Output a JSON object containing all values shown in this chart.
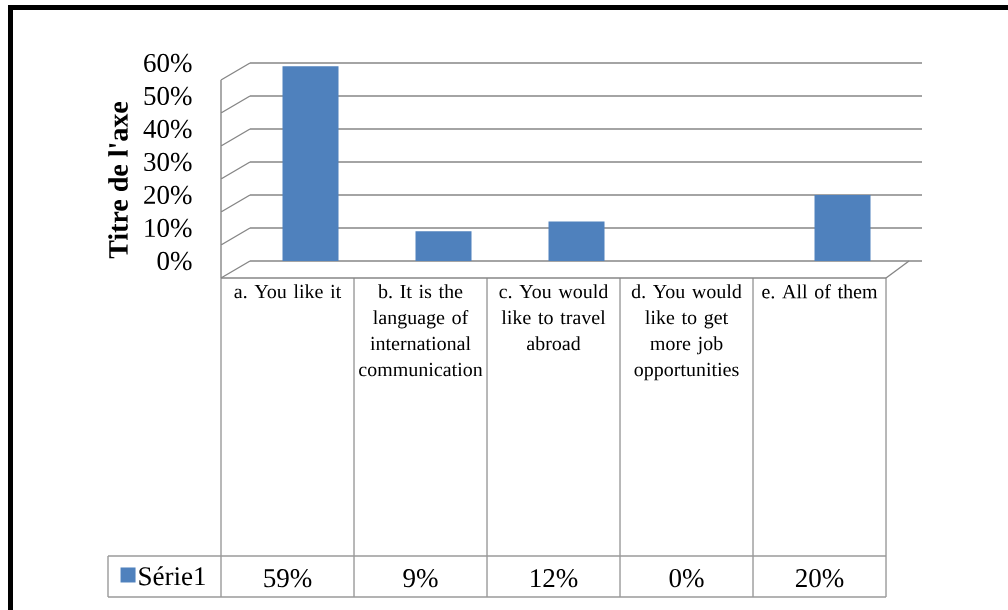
{
  "chart_data": {
    "type": "bar",
    "ylabel": "Titre de l'axe",
    "categories": [
      "a. You like it",
      "b. It is the language of international communication",
      "c. You would like to travel abroad",
      "d. You would like to get more job opportunities",
      "e. All of them"
    ],
    "series": [
      {
        "name": "Série1",
        "color": "#4f81bd",
        "values": [
          59,
          9,
          12,
          0,
          20
        ],
        "value_labels": [
          "59%",
          "9%",
          "12%",
          "0%",
          "20%"
        ]
      }
    ],
    "ylim": [
      0,
      60
    ],
    "yticks": [
      {
        "value": 0,
        "label": "0%"
      },
      {
        "value": 10,
        "label": "10%"
      },
      {
        "value": 20,
        "label": "20%"
      },
      {
        "value": 30,
        "label": "30%"
      },
      {
        "value": 40,
        "label": "40%"
      },
      {
        "value": 50,
        "label": "50%"
      },
      {
        "value": 60,
        "label": "60%"
      }
    ],
    "grid": "y",
    "legend": "bottom left"
  }
}
